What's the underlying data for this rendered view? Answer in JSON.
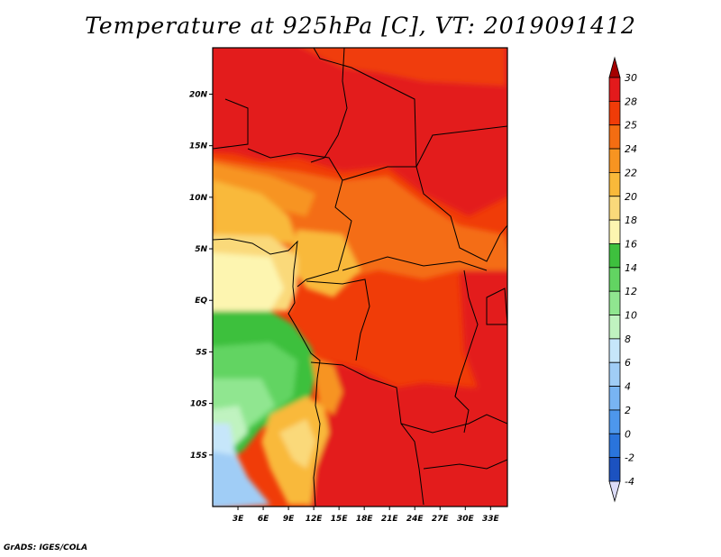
{
  "title": "Temperature at 925hPa [C], VT: 2019091412",
  "footer": "GrADS: IGES/COLA",
  "map": {
    "lat_labels": [
      "20N",
      "15N",
      "10N",
      "5N",
      "EQ",
      "5S",
      "10S",
      "15S"
    ],
    "lon_labels": [
      "3E",
      "6E",
      "9E",
      "12E",
      "15E",
      "18E",
      "21E",
      "24E",
      "27E",
      "30E",
      "33E"
    ],
    "extent": {
      "lon": [
        0,
        35
      ],
      "lat": [
        -20,
        24.5
      ]
    }
  },
  "colorbar": {
    "levels": [
      "30",
      "28",
      "25",
      "24",
      "22",
      "20",
      "18",
      "16",
      "14",
      "12",
      "10",
      "8",
      "6",
      "4",
      "2",
      "0",
      "-2",
      "-4"
    ],
    "colors": [
      "#a50000",
      "#e31a1c",
      "#f03c08",
      "#f46d12",
      "#f79421",
      "#f9b93a",
      "#fad97a",
      "#fdf5b0",
      "#3ec03e",
      "#62d462",
      "#90e690",
      "#c0f3c0",
      "#c6e6fa",
      "#a0cdf6",
      "#78b4f2",
      "#4d97ec",
      "#2a74dc",
      "#1c52c0",
      "#0e36a0",
      "#0a1e78",
      "#050a50",
      "#dcdcf8"
    ]
  }
}
